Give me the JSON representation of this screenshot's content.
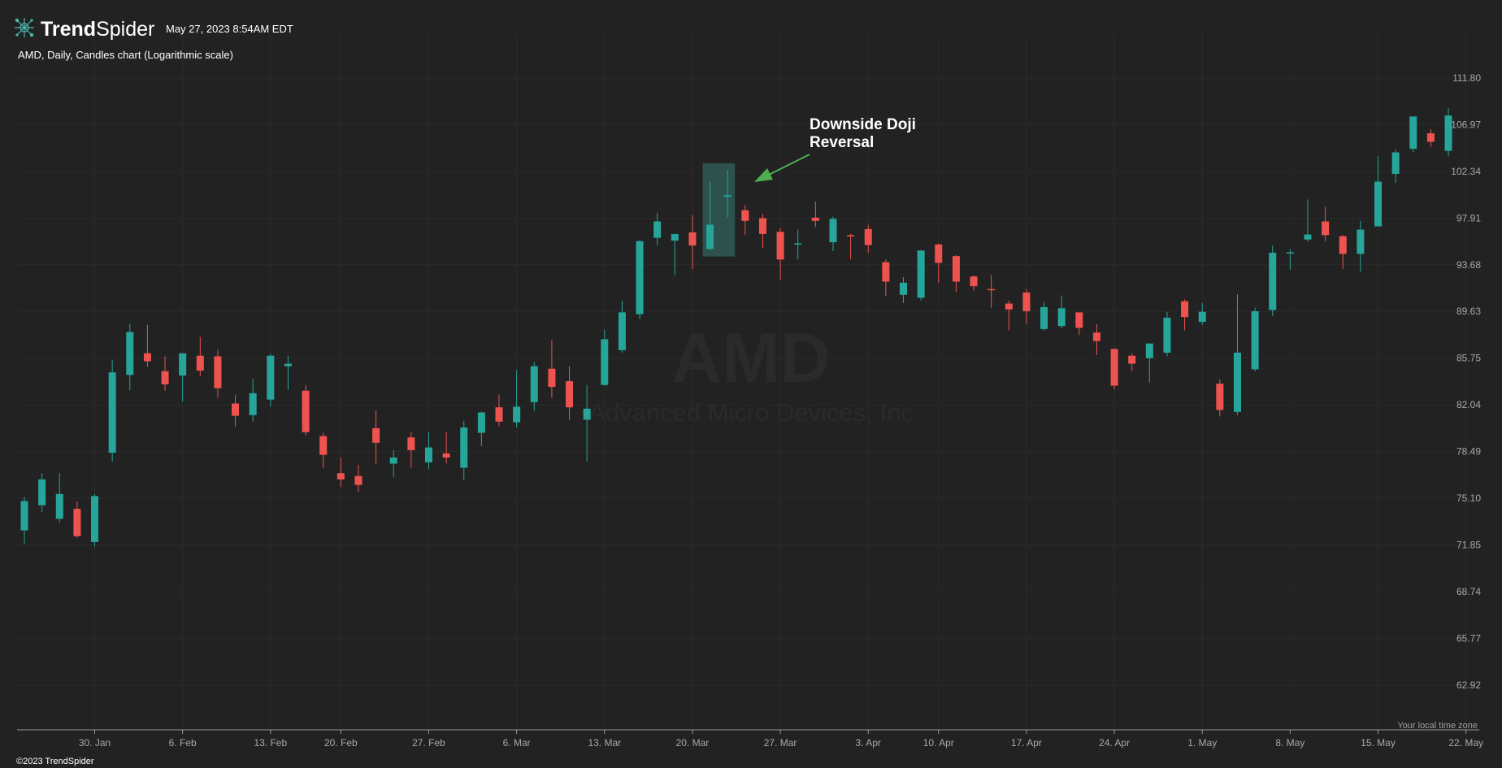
{
  "header": {
    "brand_trend": "Trend",
    "brand_spider": "Spider",
    "datetime": "May 27, 2023 8:54AM EDT",
    "description": "AMD, Daily, Candles chart (Logarithmic scale)"
  },
  "watermark": {
    "symbol": "AMD",
    "name": "Advanced Micro Devices, Inc"
  },
  "footer": {
    "timezone_note": "Your local time zone",
    "copyright": "©2023 TrendSpider"
  },
  "colors": {
    "background": "#222222",
    "up": "#26a69a",
    "down": "#ef5350",
    "grid": "#2b2b2b",
    "arrow": "#4caf50",
    "highlight": "#2f5a55"
  },
  "icons": {
    "logo": "spider-web-logo-icon"
  },
  "chart_data": {
    "type": "candlestick",
    "symbol": "AMD",
    "interval": "Daily",
    "y_scale": "log",
    "ylim": [
      60.8,
      116.0
    ],
    "grid": true,
    "x_tick_labels": [
      "30. Jan",
      "6. Feb",
      "13. Feb",
      "20. Feb",
      "27. Feb",
      "6. Mar",
      "13. Mar",
      "20. Mar",
      "27. Mar",
      "3. Apr",
      "10. Apr",
      "17. Apr",
      "24. Apr",
      "1. May",
      "8. May",
      "15. May",
      "22. May"
    ],
    "y_tick_labels": [
      "111.80",
      "106.97",
      "102.34",
      "97.91",
      "93.68",
      "89.63",
      "85.75",
      "82.04",
      "78.49",
      "75.10",
      "71.85",
      "68.74",
      "65.77",
      "62.92"
    ],
    "candles": [
      {
        "date": "2023-01-24",
        "o": 72.85,
        "h": 75.2,
        "l": 71.9,
        "c": 74.9
      },
      {
        "date": "2023-01-25",
        "o": 74.6,
        "h": 76.9,
        "l": 74.1,
        "c": 76.45
      },
      {
        "date": "2023-01-26",
        "o": 73.65,
        "h": 76.9,
        "l": 73.4,
        "c": 75.4
      },
      {
        "date": "2023-01-27",
        "o": 74.35,
        "h": 74.85,
        "l": 72.35,
        "c": 72.45
      },
      {
        "date": "2023-01-30",
        "o": 72.05,
        "h": 75.4,
        "l": 71.75,
        "c": 75.25
      },
      {
        "date": "2023-01-31",
        "o": 78.4,
        "h": 85.6,
        "l": 77.75,
        "c": 84.6
      },
      {
        "date": "2023-02-01",
        "o": 84.4,
        "h": 88.6,
        "l": 83.2,
        "c": 87.9
      },
      {
        "date": "2023-02-02",
        "o": 86.15,
        "h": 88.5,
        "l": 85.05,
        "c": 85.5
      },
      {
        "date": "2023-02-03",
        "o": 84.7,
        "h": 85.9,
        "l": 83.15,
        "c": 83.65
      },
      {
        "date": "2023-02-06",
        "o": 84.35,
        "h": 86.0,
        "l": 82.3,
        "c": 86.15
      },
      {
        "date": "2023-02-07",
        "o": 85.95,
        "h": 87.5,
        "l": 84.3,
        "c": 84.75
      },
      {
        "date": "2023-02-08",
        "o": 85.9,
        "h": 86.45,
        "l": 82.6,
        "c": 83.35
      },
      {
        "date": "2023-02-09",
        "o": 82.15,
        "h": 82.85,
        "l": 80.4,
        "c": 81.2
      },
      {
        "date": "2023-02-10",
        "o": 81.25,
        "h": 84.1,
        "l": 80.75,
        "c": 82.95
      },
      {
        "date": "2023-02-13",
        "o": 82.45,
        "h": 86.1,
        "l": 81.9,
        "c": 85.95
      },
      {
        "date": "2023-02-14",
        "o": 85.1,
        "h": 85.95,
        "l": 83.2,
        "c": 85.3
      },
      {
        "date": "2023-02-15",
        "o": 83.15,
        "h": 83.6,
        "l": 79.7,
        "c": 79.95
      },
      {
        "date": "2023-02-16",
        "o": 79.65,
        "h": 79.9,
        "l": 77.3,
        "c": 78.25
      },
      {
        "date": "2023-02-17",
        "o": 76.9,
        "h": 78.05,
        "l": 75.9,
        "c": 76.45
      },
      {
        "date": "2023-02-21",
        "o": 76.7,
        "h": 77.5,
        "l": 75.55,
        "c": 76.05
      },
      {
        "date": "2023-02-22",
        "o": 80.25,
        "h": 81.6,
        "l": 77.55,
        "c": 79.15
      },
      {
        "date": "2023-02-23",
        "o": 77.6,
        "h": 78.6,
        "l": 76.6,
        "c": 78.05
      },
      {
        "date": "2023-02-24",
        "o": 79.55,
        "h": 79.95,
        "l": 77.3,
        "c": 78.6
      },
      {
        "date": "2023-02-27",
        "o": 77.7,
        "h": 79.95,
        "l": 77.2,
        "c": 78.8
      },
      {
        "date": "2023-02-28",
        "o": 78.35,
        "h": 79.95,
        "l": 77.6,
        "c": 78.05
      },
      {
        "date": "2023-03-01",
        "o": 77.3,
        "h": 80.8,
        "l": 76.4,
        "c": 80.3
      },
      {
        "date": "2023-03-02",
        "o": 79.9,
        "h": 81.5,
        "l": 78.9,
        "c": 81.45
      },
      {
        "date": "2023-03-03",
        "o": 81.85,
        "h": 82.85,
        "l": 80.4,
        "c": 80.75
      },
      {
        "date": "2023-03-06",
        "o": 80.7,
        "h": 84.8,
        "l": 80.3,
        "c": 81.9
      },
      {
        "date": "2023-03-07",
        "o": 82.25,
        "h": 85.45,
        "l": 81.6,
        "c": 85.1
      },
      {
        "date": "2023-03-08",
        "o": 84.9,
        "h": 87.2,
        "l": 82.6,
        "c": 83.45
      },
      {
        "date": "2023-03-09",
        "o": 83.9,
        "h": 85.1,
        "l": 80.9,
        "c": 81.85
      },
      {
        "date": "2023-03-10",
        "o": 80.9,
        "h": 83.6,
        "l": 77.75,
        "c": 81.75
      },
      {
        "date": "2023-03-13",
        "o": 83.6,
        "h": 88.1,
        "l": 83.55,
        "c": 87.3
      },
      {
        "date": "2023-03-14",
        "o": 86.4,
        "h": 90.55,
        "l": 86.2,
        "c": 89.55
      },
      {
        "date": "2023-03-15",
        "o": 89.4,
        "h": 95.9,
        "l": 89.0,
        "c": 95.8
      },
      {
        "date": "2023-03-16",
        "o": 96.1,
        "h": 98.4,
        "l": 95.45,
        "c": 97.6
      },
      {
        "date": "2023-03-17",
        "o": 95.85,
        "h": 96.35,
        "l": 92.75,
        "c": 96.45
      },
      {
        "date": "2023-03-20",
        "o": 96.6,
        "h": 98.2,
        "l": 93.3,
        "c": 95.4
      },
      {
        "date": "2023-03-21",
        "o": 95.1,
        "h": 101.4,
        "l": 95.0,
        "c": 97.3
      },
      {
        "date": "2023-03-22",
        "o": 99.9,
        "h": 102.5,
        "l": 98.0,
        "c": 100.05
      },
      {
        "date": "2023-03-23",
        "o": 98.65,
        "h": 99.15,
        "l": 96.35,
        "c": 97.65
      },
      {
        "date": "2023-03-24",
        "o": 97.9,
        "h": 98.3,
        "l": 95.15,
        "c": 96.45
      },
      {
        "date": "2023-03-27",
        "o": 96.65,
        "h": 97.0,
        "l": 92.35,
        "c": 94.15
      },
      {
        "date": "2023-03-28",
        "o": 95.5,
        "h": 96.85,
        "l": 94.15,
        "c": 95.6
      },
      {
        "date": "2023-03-29",
        "o": 97.95,
        "h": 99.45,
        "l": 97.1,
        "c": 97.65
      },
      {
        "date": "2023-03-30",
        "o": 95.7,
        "h": 98.05,
        "l": 94.9,
        "c": 97.85
      },
      {
        "date": "2023-03-31",
        "o": 96.35,
        "h": 96.45,
        "l": 94.15,
        "c": 96.25
      },
      {
        "date": "2023-04-03",
        "o": 96.9,
        "h": 97.3,
        "l": 94.75,
        "c": 95.45
      },
      {
        "date": "2023-04-04",
        "o": 93.9,
        "h": 94.15,
        "l": 90.95,
        "c": 92.2
      },
      {
        "date": "2023-04-05",
        "o": 91.05,
        "h": 92.6,
        "l": 90.35,
        "c": 92.1
      },
      {
        "date": "2023-04-06",
        "o": 90.8,
        "h": 95.0,
        "l": 90.55,
        "c": 94.95
      },
      {
        "date": "2023-04-10",
        "o": 95.5,
        "h": 95.6,
        "l": 92.1,
        "c": 93.85
      },
      {
        "date": "2023-04-11",
        "o": 94.45,
        "h": 94.55,
        "l": 91.3,
        "c": 92.2
      },
      {
        "date": "2023-04-12",
        "o": 92.65,
        "h": 92.75,
        "l": 91.4,
        "c": 91.8
      },
      {
        "date": "2023-04-13",
        "o": 91.55,
        "h": 92.75,
        "l": 89.95,
        "c": 91.45
      },
      {
        "date": "2023-04-14",
        "o": 90.3,
        "h": 90.55,
        "l": 88.05,
        "c": 89.8
      },
      {
        "date": "2023-04-17",
        "o": 91.25,
        "h": 91.55,
        "l": 88.55,
        "c": 89.65
      },
      {
        "date": "2023-04-18",
        "o": 88.15,
        "h": 90.45,
        "l": 88.0,
        "c": 90.0
      },
      {
        "date": "2023-04-19",
        "o": 88.4,
        "h": 91.0,
        "l": 88.2,
        "c": 89.9
      },
      {
        "date": "2023-04-20",
        "o": 89.55,
        "h": 89.55,
        "l": 87.65,
        "c": 88.25
      },
      {
        "date": "2023-04-21",
        "o": 87.85,
        "h": 88.55,
        "l": 86.0,
        "c": 87.15
      },
      {
        "date": "2023-04-24",
        "o": 86.5,
        "h": 86.55,
        "l": 83.25,
        "c": 83.55
      },
      {
        "date": "2023-04-25",
        "o": 85.95,
        "h": 86.15,
        "l": 84.7,
        "c": 85.3
      },
      {
        "date": "2023-04-26",
        "o": 85.75,
        "h": 86.9,
        "l": 83.8,
        "c": 86.95
      },
      {
        "date": "2023-04-27",
        "o": 86.2,
        "h": 89.6,
        "l": 85.9,
        "c": 89.1
      },
      {
        "date": "2023-04-28",
        "o": 90.5,
        "h": 90.65,
        "l": 88.05,
        "c": 89.15
      },
      {
        "date": "2023-05-01",
        "o": 88.75,
        "h": 90.35,
        "l": 88.5,
        "c": 89.6
      },
      {
        "date": "2023-05-02",
        "o": 83.7,
        "h": 84.05,
        "l": 81.15,
        "c": 81.65
      },
      {
        "date": "2023-05-03",
        "o": 81.5,
        "h": 91.1,
        "l": 81.25,
        "c": 86.2
      },
      {
        "date": "2023-05-04",
        "o": 84.85,
        "h": 89.95,
        "l": 84.7,
        "c": 89.65
      },
      {
        "date": "2023-05-05",
        "o": 89.75,
        "h": 95.4,
        "l": 89.25,
        "c": 94.75
      },
      {
        "date": "2023-05-08",
        "o": 94.75,
        "h": 95.05,
        "l": 93.25,
        "c": 94.8
      },
      {
        "date": "2023-05-09",
        "o": 95.95,
        "h": 99.65,
        "l": 95.75,
        "c": 96.4
      },
      {
        "date": "2023-05-10",
        "o": 97.6,
        "h": 98.95,
        "l": 95.8,
        "c": 96.35
      },
      {
        "date": "2023-05-11",
        "o": 96.25,
        "h": 96.35,
        "l": 93.3,
        "c": 94.65
      },
      {
        "date": "2023-05-12",
        "o": 94.65,
        "h": 97.65,
        "l": 93.05,
        "c": 96.85
      },
      {
        "date": "2023-05-15",
        "o": 97.15,
        "h": 103.85,
        "l": 97.25,
        "c": 101.35
      },
      {
        "date": "2023-05-16",
        "o": 102.1,
        "h": 104.5,
        "l": 101.25,
        "c": 104.2
      },
      {
        "date": "2023-05-17",
        "o": 104.55,
        "h": 107.75,
        "l": 104.2,
        "c": 107.8
      },
      {
        "date": "2023-05-18",
        "o": 106.1,
        "h": 106.5,
        "l": 104.75,
        "c": 105.25
      },
      {
        "date": "2023-05-19",
        "o": 104.35,
        "h": 108.65,
        "l": 103.8,
        "c": 107.9
      }
    ],
    "annotations": [
      {
        "text_lines": [
          "Downside Doji",
          "Reversal"
        ],
        "target_date": "2023-03-22",
        "pattern": "Downside Doji Reversal"
      }
    ]
  }
}
